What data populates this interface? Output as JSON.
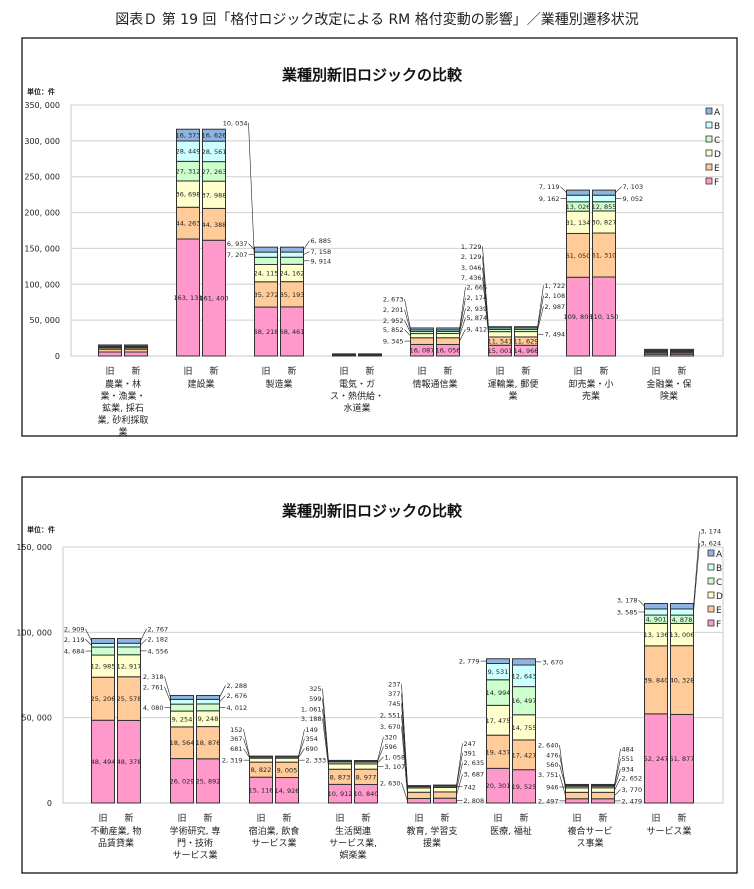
{
  "page_title": "図表Ｄ 第 19 回「格付ロジック改定による RM 格付変動の影響」／業種別遷移状況",
  "colors": {
    "A": "#8DB4E2",
    "B": "#CCFFFF",
    "C": "#CCFFCC",
    "D": "#FFFFCC",
    "E": "#FFCC99",
    "F": "#FF99CC"
  },
  "chart_data": [
    {
      "type": "bar",
      "stacked": true,
      "title": "業種別新旧ロジックの比較",
      "unit": "単位：件",
      "ylim": [
        0,
        350000
      ],
      "yticks": [
        "0",
        "50, 000",
        "100, 000",
        "150, 000",
        "200, 000",
        "250, 000",
        "300, 000",
        "350, 000"
      ],
      "ytick_values": [
        0,
        50000,
        100000,
        150000,
        200000,
        250000,
        300000,
        350000
      ],
      "grid": true,
      "legend": {
        "position": "right",
        "entries": [
          "A",
          "B",
          "C",
          "D",
          "E",
          "F"
        ]
      },
      "bar_labels": [
        "旧",
        "新"
      ],
      "stack_order": [
        "F",
        "E",
        "D",
        "C",
        "B",
        "A"
      ],
      "categories": [
        {
          "lines": [
            "農業・林",
            "業・漁業・",
            "鉱業, 採石",
            "業, 砂利採取",
            "業"
          ],
          "show_labels": false,
          "old": {
            "F": 5600,
            "E": 3900,
            "D": 2000,
            "C": 1300,
            "B": 900,
            "A": 1700
          },
          "new": {
            "F": 5600,
            "E": 3900,
            "D": 2000,
            "C": 1300,
            "B": 900,
            "A": 1700
          }
        },
        {
          "lines": [
            "建設業"
          ],
          "show_labels": true,
          "old": {
            "F": 163131,
            "E": 44263,
            "D": 36698,
            "C": 27312,
            "B": 28449,
            "A": 16373
          },
          "new": {
            "F": 161400,
            "E": 44388,
            "D": 37988,
            "C": 27263,
            "B": 28561,
            "A": 16626
          }
        },
        {
          "lines": [
            "製造業"
          ],
          "show_labels": true,
          "old": {
            "F": 68218,
            "E": 35272,
            "D": 24115,
            "C": 10034,
            "B": 7207,
            "A": 6937
          },
          "new": {
            "F": 68461,
            "E": 35193,
            "D": 24162,
            "C": 9914,
            "B": 7158,
            "A": 6885
          }
        },
        {
          "lines": [
            "電気・ガ",
            "ス・熱供給・",
            "水道業"
          ],
          "show_labels": false,
          "old": {
            "F": 700,
            "E": 600,
            "D": 500,
            "C": 400,
            "B": 300,
            "A": 500
          },
          "new": {
            "F": 700,
            "E": 600,
            "D": 500,
            "C": 400,
            "B": 300,
            "A": 500
          }
        },
        {
          "lines": [
            "情報通信業"
          ],
          "show_labels": true,
          "old": {
            "F": 16087,
            "E": 9345,
            "D": 5852,
            "C": 2952,
            "B": 2201,
            "A": 2673
          },
          "new": {
            "F": 16056,
            "E": 9412,
            "D": 5874,
            "C": 2939,
            "B": 2174,
            "A": 2665
          }
        },
        {
          "lines": [
            "運輸業, 郵便",
            "業"
          ],
          "show_labels": true,
          "old": {
            "F": 15001,
            "E": 11541,
            "D": 7436,
            "C": 3046,
            "B": 2129,
            "A": 1729
          },
          "new": {
            "F": 14966,
            "E": 11629,
            "D": 7494,
            "C": 2987,
            "B": 2108,
            "A": 1722
          }
        },
        {
          "lines": [
            "卸売業・小",
            "売業"
          ],
          "show_labels": true,
          "old": {
            "F": 109806,
            "E": 61050,
            "D": 31134,
            "C": 13026,
            "B": 9162,
            "A": 7119
          },
          "new": {
            "F": 110150,
            "E": 61310,
            "D": 30827,
            "C": 12855,
            "B": 9052,
            "A": 7103
          }
        },
        {
          "lines": [
            "金融業・保",
            "険業"
          ],
          "show_labels": false,
          "old": {
            "F": 2500,
            "E": 2000,
            "D": 1500,
            "C": 1000,
            "B": 800,
            "A": 1500
          },
          "new": {
            "F": 2500,
            "E": 2000,
            "D": 1500,
            "C": 1000,
            "B": 800,
            "A": 1500
          }
        }
      ]
    },
    {
      "type": "bar",
      "stacked": true,
      "title": "業種別新旧ロジックの比較",
      "unit": "単位：件",
      "ylim": [
        0,
        150000
      ],
      "yticks": [
        "0",
        "50, 000",
        "100, 000",
        "150, 000"
      ],
      "ytick_values": [
        0,
        50000,
        100000,
        150000
      ],
      "grid": true,
      "legend": {
        "position": "right",
        "entries": [
          "A",
          "B",
          "C",
          "D",
          "E",
          "F"
        ]
      },
      "bar_labels": [
        "旧",
        "新"
      ],
      "stack_order": [
        "F",
        "E",
        "D",
        "C",
        "B",
        "A"
      ],
      "categories": [
        {
          "lines": [
            "不動産業, 物",
            "品賃貸業"
          ],
          "show_labels": true,
          "old": {
            "F": 48494,
            "E": 25206,
            "D": 12985,
            "C": 4684,
            "B": 2119,
            "A": 2909
          },
          "new": {
            "F": 48378,
            "E": 25578,
            "D": 12917,
            "C": 4556,
            "B": 2182,
            "A": 2767
          }
        },
        {
          "lines": [
            "学術研究, 専",
            "門・技術",
            "サービス業"
          ],
          "show_labels": true,
          "old": {
            "F": 26029,
            "E": 18564,
            "D": 9254,
            "C": 4080,
            "B": 2761,
            "A": 2318
          },
          "new": {
            "F": 25892,
            "E": 18876,
            "D": 9248,
            "C": 4012,
            "B": 2676,
            "A": 2288
          }
        },
        {
          "lines": [
            "宿泊業, 飲食",
            "サービス業"
          ],
          "show_labels": true,
          "old": {
            "F": 15116,
            "E": 8822,
            "D": 2319,
            "C": 681,
            "B": 367,
            "A": 152
          },
          "new": {
            "F": 14926,
            "E": 9005,
            "D": 2333,
            "C": 690,
            "B": 354,
            "A": 149
          }
        },
        {
          "lines": [
            "生活関連",
            "サービス業,",
            "娯楽業"
          ],
          "show_labels": true,
          "old": {
            "F": 10912,
            "E": 8873,
            "D": 3188,
            "C": 1061,
            "B": 599,
            "A": 325
          },
          "new": {
            "F": 10840,
            "E": 8977,
            "D": 3107,
            "C": 1058,
            "B": 596,
            "A": 320
          }
        },
        {
          "lines": [
            "教育, 学習支",
            "援業"
          ],
          "show_labels": true,
          "old": {
            "F": 2630,
            "E": 3670,
            "D": 2551,
            "C": 745,
            "B": 377,
            "A": 237
          },
          "new": {
            "F": 2808,
            "E": 3687,
            "D": 2635,
            "C": 742,
            "B": 391,
            "A": 247
          }
        },
        {
          "lines": [
            "医療, 福祉"
          ],
          "show_labels": true,
          "old": {
            "F": 20301,
            "E": 19437,
            "D": 17475,
            "C": 14994,
            "B": 9531,
            "A": 2779
          },
          "new": {
            "F": 19525,
            "E": 17427,
            "D": 14755,
            "C": 16497,
            "B": 12643,
            "A": 3670
          }
        },
        {
          "lines": [
            "複合サービ",
            "ス事業"
          ],
          "show_labels": true,
          "old": {
            "F": 2497,
            "E": 3751,
            "D": 2640,
            "C": 946,
            "B": 560,
            "A": 476
          },
          "new": {
            "F": 2479,
            "E": 3770,
            "D": 2652,
            "C": 934,
            "B": 551,
            "A": 484
          }
        },
        {
          "lines": [
            "サービス業"
          ],
          "show_labels": true,
          "old": {
            "F": 52247,
            "E": 39840,
            "D": 13136,
            "C": 4901,
            "B": 3585,
            "A": 3178
          },
          "new": {
            "F": 51877,
            "E": 40328,
            "D": 13006,
            "C": 4878,
            "B": 3624,
            "A": 3174
          }
        }
      ]
    }
  ]
}
